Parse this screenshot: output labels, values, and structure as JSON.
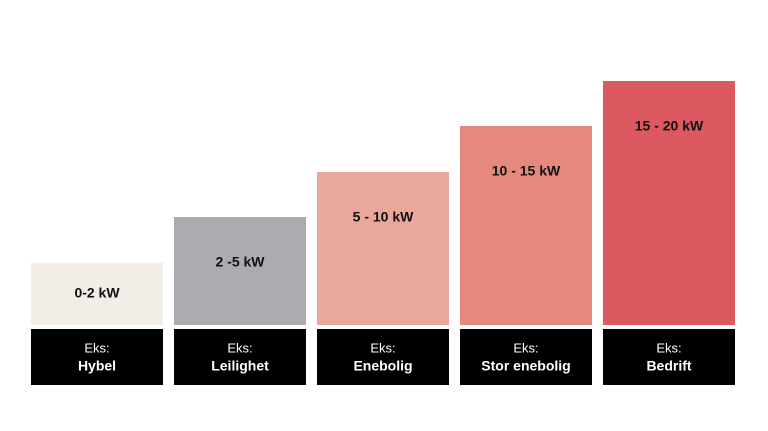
{
  "items": [
    {
      "range": "0-2 kW",
      "prefix": "Eks:",
      "name": "Hybel"
    },
    {
      "range": "2 -5 kW",
      "prefix": "Eks:",
      "name": "Leilighet"
    },
    {
      "range": "5 - 10 kW",
      "prefix": "Eks:",
      "name": "Enebolig"
    },
    {
      "range": "10 - 15 kW",
      "prefix": "Eks:",
      "name": "Stor enebolig"
    },
    {
      "range": "15 - 20 kW",
      "prefix": "Eks:",
      "name": "Bedrift"
    }
  ]
}
